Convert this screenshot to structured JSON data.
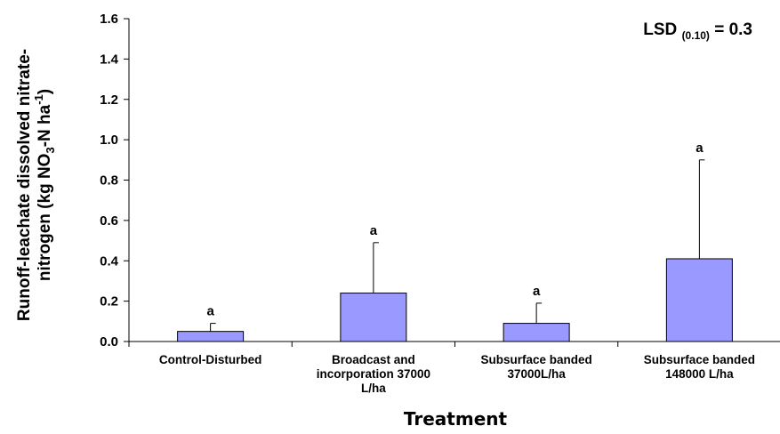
{
  "chart_data": {
    "type": "bar",
    "categories": [
      [
        "Control-Disturbed"
      ],
      [
        "Broadcast and",
        "incorporation 37000",
        "L/ha"
      ],
      [
        "Subsurface banded",
        "37000L/ha"
      ],
      [
        "Subsurface banded",
        "148000 L/ha"
      ]
    ],
    "values": [
      0.05,
      0.24,
      0.09,
      0.41
    ],
    "error_plus": [
      0.04,
      0.25,
      0.1,
      0.49
    ],
    "significance_letters": [
      "a",
      "a",
      "a",
      "a"
    ],
    "xlabel": "Treatment",
    "ylabel": {
      "line1": "Runoff-leachate dissolved nitrate-",
      "line2_main": "nitrogen (kg NO",
      "line2_sub": "3",
      "line2_mid": "-N ha",
      "line2_sup": "-1",
      "line2_end": ")"
    },
    "ylim": [
      0,
      1.6
    ],
    "yticks": [
      "0.0",
      "0.2",
      "0.4",
      "0.6",
      "0.8",
      "1.0",
      "1.2",
      "1.4",
      "1.6"
    ],
    "annotation": {
      "main": "LSD",
      "sub": "(0.10)",
      "tail": "= 0.3"
    },
    "grid": false,
    "legend": "none"
  },
  "colors": {
    "bar": "#9999ff",
    "bar_edge": "#000000",
    "axis": "#000000"
  }
}
